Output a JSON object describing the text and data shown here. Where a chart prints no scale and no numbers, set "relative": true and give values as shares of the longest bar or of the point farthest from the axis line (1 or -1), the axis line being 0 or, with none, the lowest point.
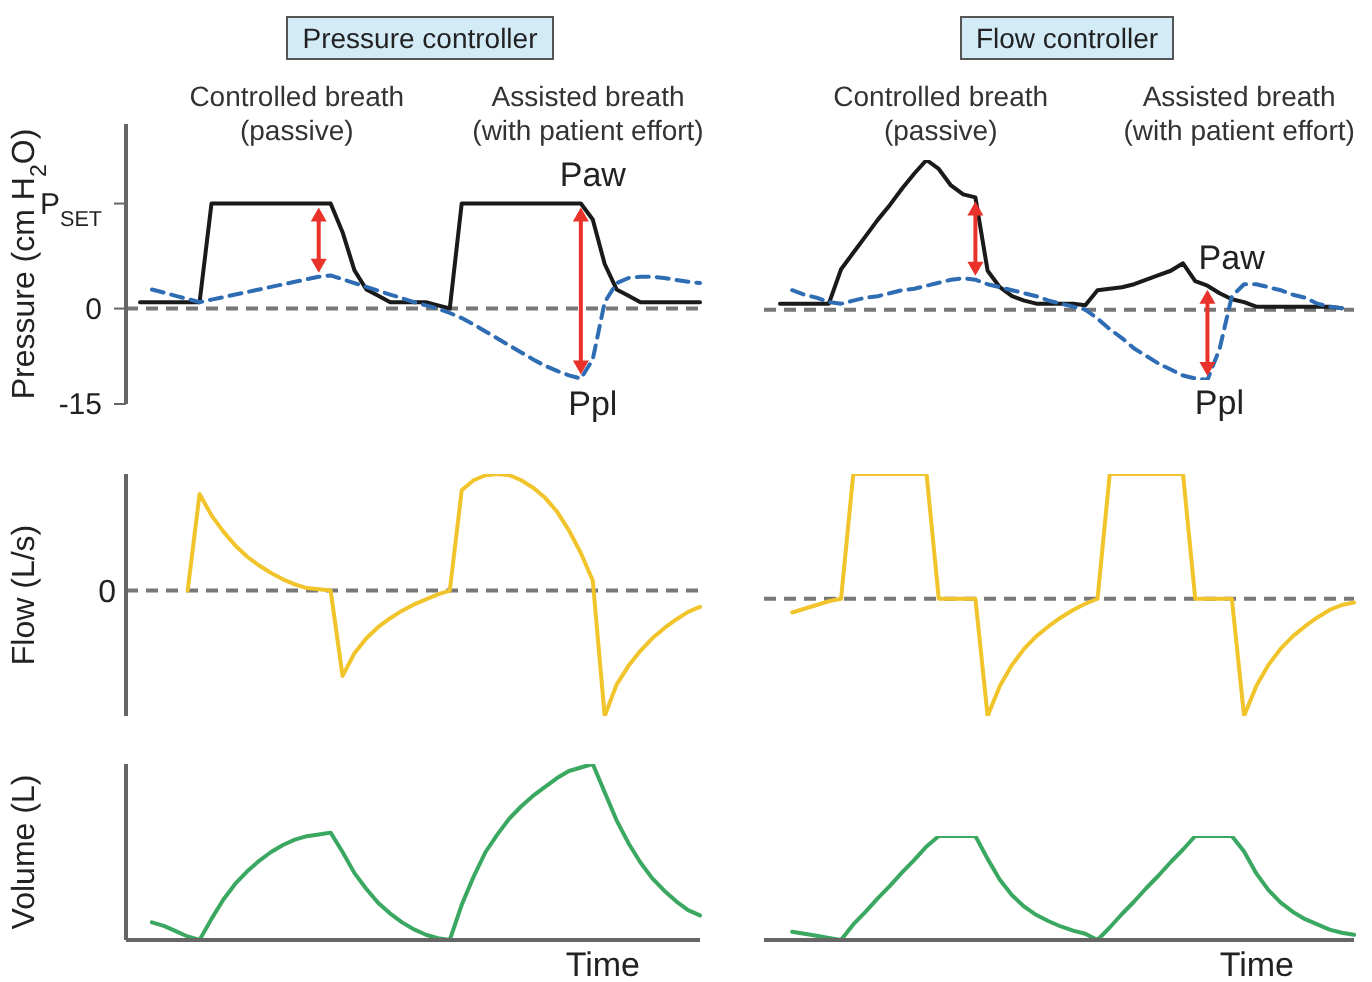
{
  "chart_data": [
    {
      "type": "line",
      "title": "Pressure controller",
      "ylabel": "Pressure (cm H$_{2}$O)",
      "annotations": [
        "Controlled breath\n(passive)",
        "Assisted breath\n(with patient effort)"
      ],
      "categories": [
        null,
        null,
        null,
        null,
        null,
        null,
        null,
        null,
        null,
        null,
        null,
        null,
        null,
        null,
        null,
        null,
        null,
        null,
        null,
        null,
        null,
        null,
        null,
        null,
        null,
        null,
        null,
        null,
        null,
        null,
        null,
        null,
        null,
        null,
        null,
        null,
        null,
        null,
        null,
        null,
        null,
        null,
        null,
        null,
        null,
        null,
        null,
        null
      ],
      "ylim": [
        -15,
        29
      ],
      "yticks": [
        {
          "value": 16.5,
          "label": "P$_{SET}$"
        },
        0,
        -15
      ],
      "tick_labels": "y",
      "marker": "none",
      "ref_lines": [
        {
          "axis": "y",
          "value": 0,
          "color": "#777777",
          "line_style": "dashed"
        }
      ],
      "series": [
        {
          "name": "Paw",
          "color": "#1a1a1a",
          "line_style": "solid",
          "values": [
            1,
            1,
            1,
            1,
            1,
            1,
            16.5,
            16.5,
            16.5,
            16.5,
            16.5,
            16.5,
            16.5,
            16.5,
            16.5,
            16.5,
            16.5,
            12,
            6,
            3,
            2,
            1,
            1,
            1,
            1,
            0.5,
            0,
            16.5,
            16.5,
            16.5,
            16.5,
            16.5,
            16.5,
            16.5,
            16.5,
            16.5,
            16.5,
            16.5,
            14,
            7,
            3,
            2,
            1,
            1,
            1,
            1,
            1,
            1
          ]
        },
        {
          "name": "Ppl",
          "color": "#2e6db4",
          "line_style": "dashed",
          "values": [
            null,
            3,
            2.5,
            2,
            1.5,
            1,
            1.4,
            1.8,
            2.2,
            2.6,
            3,
            3.4,
            3.8,
            4.2,
            4.6,
            5,
            5.2,
            4.6,
            4,
            3.4,
            2.8,
            2.2,
            1.6,
            1,
            0.5,
            0,
            -0.7,
            -1.5,
            -2.5,
            -3.6,
            -4.7,
            -5.8,
            -6.9,
            -8,
            -9,
            -9.8,
            -10.5,
            -11,
            -8,
            1,
            4,
            4.8,
            5,
            5,
            4.8,
            4.5,
            4.2,
            4
          ]
        }
      ]
    },
    {
      "type": "line",
      "title": "Flow controller",
      "annotations": [
        "Controlled breath\n(passive)",
        "Assisted breath\n(with patient effort)"
      ],
      "categories": [
        null,
        null,
        null,
        null,
        null,
        null,
        null,
        null,
        null,
        null,
        null,
        null,
        null,
        null,
        null,
        null,
        null,
        null,
        null,
        null,
        null,
        null,
        null,
        null,
        null,
        null,
        null,
        null,
        null,
        null,
        null,
        null,
        null,
        null,
        null,
        null,
        null,
        null,
        null,
        null,
        null,
        null,
        null,
        null,
        null,
        null,
        null,
        null
      ],
      "relative": true,
      "marker": "none",
      "ref_lines": [
        {
          "axis": "y",
          "value": 0,
          "color": "#777777",
          "line_style": "dashed"
        }
      ],
      "series": [
        {
          "name": "Paw",
          "color": "#1a1a1a",
          "line_style": "solid",
          "values": [
            0.04,
            0.04,
            0.04,
            0.04,
            0.04,
            0.27,
            0.38,
            0.49,
            0.6,
            0.7,
            0.81,
            0.91,
            1,
            0.94,
            0.83,
            0.77,
            0.75,
            0.26,
            0.15,
            0.09,
            0.06,
            0.04,
            0.04,
            0.04,
            0.04,
            0.03,
            0.13,
            0.14,
            0.15,
            0.17,
            0.2,
            0.23,
            0.26,
            0.31,
            0.19,
            0.16,
            0.11,
            0.07,
            0.05,
            0.02,
            0.02,
            0.02,
            0.02,
            0.02,
            0.02,
            0.02,
            0.01,
            null
          ]
        },
        {
          "name": "Ppl",
          "color": "#2e6db4",
          "line_style": "dashed",
          "values": [
            null,
            0.13,
            0.1,
            0.08,
            0.05,
            0.04,
            0.06,
            0.08,
            0.09,
            0.11,
            0.13,
            0.14,
            0.16,
            0.18,
            0.2,
            0.21,
            0.2,
            0.17,
            0.15,
            0.13,
            0.11,
            0.09,
            0.06,
            0.04,
            0.02,
            0,
            -0.06,
            -0.13,
            -0.19,
            -0.26,
            -0.31,
            -0.36,
            -0.4,
            -0.44,
            -0.46,
            -0.47,
            -0.26,
            0.09,
            0.17,
            0.17,
            0.15,
            0.13,
            0.1,
            0.08,
            0.04,
            0.02,
            0.01,
            null
          ]
        }
      ]
    },
    {
      "type": "line",
      "relative": true,
      "ylabel": "Flow (L/s)",
      "categories": [
        null,
        null,
        null,
        null,
        null,
        null,
        null,
        null,
        null,
        null,
        null,
        null,
        null,
        null,
        null,
        null,
        null,
        null,
        null,
        null,
        null,
        null,
        null,
        null,
        null,
        null,
        null,
        null,
        null,
        null,
        null,
        null,
        null,
        null,
        null,
        null,
        null,
        null,
        null,
        null,
        null,
        null,
        null,
        null,
        null,
        null,
        null,
        null
      ],
      "marker": "none",
      "ref_lines": [
        {
          "axis": "y",
          "value": 0,
          "label": "0",
          "color": "#777777",
          "line_style": "dashed"
        }
      ],
      "series": [
        {
          "color": "#f0c42a",
          "values": [
            null,
            null,
            null,
            null,
            0,
            0.77,
            0.6,
            0.47,
            0.36,
            0.27,
            0.2,
            0.14,
            0.09,
            0.05,
            0.02,
            0.01,
            0,
            -0.68,
            -0.5,
            -0.38,
            -0.29,
            -0.22,
            -0.16,
            -0.11,
            -0.07,
            -0.03,
            0,
            0.8,
            0.88,
            0.92,
            0.93,
            0.92,
            0.88,
            0.82,
            0.74,
            0.63,
            0.48,
            0.3,
            0.08,
            -1,
            -0.75,
            -0.6,
            -0.48,
            -0.38,
            -0.3,
            -0.23,
            -0.17,
            -0.13
          ]
        }
      ]
    },
    {
      "type": "line",
      "relative": true,
      "categories": [
        null,
        null,
        null,
        null,
        null,
        null,
        null,
        null,
        null,
        null,
        null,
        null,
        null,
        null,
        null,
        null,
        null,
        null,
        null,
        null,
        null,
        null,
        null,
        null,
        null,
        null,
        null,
        null,
        null,
        null,
        null,
        null,
        null,
        null,
        null,
        null,
        null,
        null,
        null,
        null,
        null,
        null,
        null,
        null,
        null,
        null,
        null,
        null
      ],
      "marker": "none",
      "ref_lines": [
        {
          "axis": "y",
          "value": 0,
          "color": "#777777",
          "line_style": "dashed"
        }
      ],
      "series": [
        {
          "color": "#f0c42a",
          "values": [
            null,
            -0.11,
            -0.08,
            -0.05,
            -0.02,
            0,
            1,
            1,
            1,
            1,
            1,
            1,
            1,
            0,
            0,
            0,
            0,
            -0.94,
            -0.7,
            -0.53,
            -0.4,
            -0.3,
            -0.22,
            -0.15,
            -0.09,
            -0.04,
            0,
            1,
            1,
            1,
            1,
            1,
            1,
            1,
            0,
            0,
            0,
            0,
            -0.94,
            -0.7,
            -0.53,
            -0.4,
            -0.3,
            -0.22,
            -0.15,
            -0.09,
            -0.05,
            -0.03
          ]
        }
      ]
    },
    {
      "type": "line",
      "relative": true,
      "ylabel": "Volume (L)",
      "xlabel": "Time",
      "categories": [
        null,
        null,
        null,
        null,
        null,
        null,
        null,
        null,
        null,
        null,
        null,
        null,
        null,
        null,
        null,
        null,
        null,
        null,
        null,
        null,
        null,
        null,
        null,
        null,
        null,
        null,
        null,
        null,
        null,
        null,
        null,
        null,
        null,
        null,
        null,
        null,
        null,
        null,
        null,
        null,
        null,
        null,
        null,
        null,
        null,
        null,
        null,
        null
      ],
      "marker": "none",
      "series": [
        {
          "color": "#3aa860",
          "values": [
            null,
            0.1,
            0.08,
            0.05,
            0.02,
            0,
            0.12,
            0.23,
            0.32,
            0.39,
            0.45,
            0.5,
            0.54,
            0.57,
            0.59,
            0.6,
            0.61,
            0.5,
            0.38,
            0.29,
            0.21,
            0.15,
            0.1,
            0.06,
            0.03,
            0.01,
            0,
            0.2,
            0.36,
            0.5,
            0.6,
            0.69,
            0.76,
            0.82,
            0.87,
            0.92,
            0.96,
            0.98,
            1,
            0.84,
            0.68,
            0.55,
            0.44,
            0.35,
            0.28,
            0.22,
            0.17,
            0.14
          ]
        }
      ]
    },
    {
      "type": "line",
      "relative": true,
      "xlabel": "Time",
      "categories": [
        null,
        null,
        null,
        null,
        null,
        null,
        null,
        null,
        null,
        null,
        null,
        null,
        null,
        null,
        null,
        null,
        null,
        null,
        null,
        null,
        null,
        null,
        null,
        null,
        null,
        null,
        null,
        null,
        null,
        null,
        null,
        null,
        null,
        null,
        null,
        null,
        null,
        null,
        null,
        null,
        null,
        null,
        null,
        null,
        null,
        null,
        null,
        null
      ],
      "marker": "none",
      "series": [
        {
          "color": "#3aa860",
          "values": [
            null,
            0.08,
            0.06,
            0.04,
            0.02,
            0,
            0.15,
            0.27,
            0.4,
            0.52,
            0.65,
            0.77,
            0.9,
            1,
            1,
            1,
            1,
            0.78,
            0.58,
            0.43,
            0.32,
            0.24,
            0.18,
            0.13,
            0.09,
            0.06,
            0,
            0.12,
            0.25,
            0.37,
            0.5,
            0.62,
            0.75,
            0.87,
            1,
            1,
            1,
            1,
            0.85,
            0.64,
            0.48,
            0.36,
            0.27,
            0.2,
            0.15,
            0.1,
            0.07,
            0.05
          ]
        }
      ]
    }
  ]
}
